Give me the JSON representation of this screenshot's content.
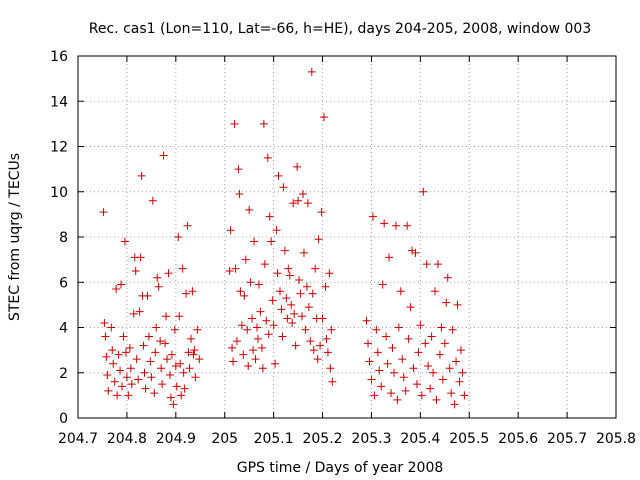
{
  "chart_data": {
    "type": "scatter",
    "title": "Rec. cas1 (Lon=110, Lat=-66, h=HE), days 204-205, 2008, window 003",
    "xlabel": "GPS time / Days of year 2008",
    "ylabel": "STEC from uqrg / TECUs",
    "xlim": [
      204.7,
      205.8
    ],
    "ylim": [
      0,
      16
    ],
    "xticks": [
      204.7,
      204.8,
      204.9,
      205,
      205.1,
      205.2,
      205.3,
      205.4,
      205.5,
      205.6,
      205.7,
      205.8
    ],
    "xtick_labels": [
      "204.7",
      "204.8",
      "204.9",
      "205",
      "205.1",
      "205.2",
      "205.3",
      "205.4",
      "205.5",
      "205.6",
      "205.7",
      "205.8"
    ],
    "yticks": [
      0,
      2,
      4,
      6,
      8,
      10,
      12,
      14,
      16
    ],
    "ytick_labels": [
      "0",
      "2",
      "4",
      "6",
      "8",
      "10",
      "12",
      "14",
      "16"
    ],
    "grid": true,
    "marker": "+",
    "color": "#cc0000",
    "series": [
      {
        "name": "STEC",
        "points": [
          [
            204.752,
            9.1
          ],
          [
            204.754,
            4.2
          ],
          [
            204.756,
            3.6
          ],
          [
            204.758,
            2.7
          ],
          [
            204.76,
            1.9
          ],
          [
            204.762,
            1.2
          ],
          [
            204.768,
            4.0
          ],
          [
            204.77,
            3.0
          ],
          [
            204.772,
            2.4
          ],
          [
            204.775,
            1.6
          ],
          [
            204.778,
            5.7
          ],
          [
            204.78,
            1.0
          ],
          [
            204.783,
            2.8
          ],
          [
            204.786,
            2.1
          ],
          [
            204.788,
            5.9
          ],
          [
            204.79,
            1.4
          ],
          [
            204.793,
            3.6
          ],
          [
            204.796,
            7.8
          ],
          [
            204.798,
            2.9
          ],
          [
            204.8,
            1.8
          ],
          [
            204.803,
            1.0
          ],
          [
            204.806,
            3.1
          ],
          [
            204.808,
            2.2
          ],
          [
            204.81,
            1.5
          ],
          [
            204.814,
            4.6
          ],
          [
            204.816,
            7.1
          ],
          [
            204.818,
            6.5
          ],
          [
            204.82,
            2.6
          ],
          [
            204.823,
            1.7
          ],
          [
            204.826,
            4.7
          ],
          [
            204.828,
            7.1
          ],
          [
            204.83,
            10.7
          ],
          [
            204.832,
            5.4
          ],
          [
            204.834,
            3.2
          ],
          [
            204.836,
            2.0
          ],
          [
            204.838,
            1.3
          ],
          [
            204.842,
            5.4
          ],
          [
            204.845,
            3.6
          ],
          [
            204.848,
            2.5
          ],
          [
            204.85,
            1.8
          ],
          [
            204.853,
            9.6
          ],
          [
            204.856,
            1.1
          ],
          [
            204.858,
            2.9
          ],
          [
            204.86,
            4.0
          ],
          [
            204.862,
            6.2
          ],
          [
            204.865,
            5.8
          ],
          [
            204.868,
            3.4
          ],
          [
            204.87,
            2.2
          ],
          [
            204.872,
            1.5
          ],
          [
            204.875,
            11.6
          ],
          [
            204.878,
            3.3
          ],
          [
            204.88,
            4.5
          ],
          [
            204.882,
            2.6
          ],
          [
            204.885,
            6.4
          ],
          [
            204.888,
            1.9
          ],
          [
            204.89,
            0.9
          ],
          [
            204.892,
            2.8
          ],
          [
            204.895,
            0.6
          ],
          [
            204.898,
            3.9
          ],
          [
            204.9,
            2.3
          ],
          [
            204.902,
            1.4
          ],
          [
            204.905,
            8.0
          ],
          [
            204.907,
            4.5
          ],
          [
            204.909,
            2.4
          ],
          [
            204.911,
            1.0
          ],
          [
            204.914,
            6.6
          ],
          [
            204.916,
            2.0
          ],
          [
            204.918,
            1.3
          ],
          [
            204.921,
            5.5
          ],
          [
            204.924,
            8.5
          ],
          [
            204.926,
            2.9
          ],
          [
            204.928,
            2.2
          ],
          [
            204.931,
            3.5
          ],
          [
            204.934,
            5.6
          ],
          [
            204.936,
            2.8
          ],
          [
            204.938,
            3.0
          ],
          [
            204.94,
            1.8
          ],
          [
            204.944,
            3.9
          ],
          [
            204.948,
            2.6
          ],
          [
            205.01,
            6.5
          ],
          [
            205.012,
            8.3
          ],
          [
            205.015,
            3.1
          ],
          [
            205.017,
            2.5
          ],
          [
            205.02,
            13.0
          ],
          [
            205.022,
            6.6
          ],
          [
            205.025,
            3.4
          ],
          [
            205.028,
            11.0
          ],
          [
            205.03,
            9.9
          ],
          [
            205.032,
            5.6
          ],
          [
            205.035,
            4.1
          ],
          [
            205.038,
            2.8
          ],
          [
            205.04,
            5.4
          ],
          [
            205.043,
            7.0
          ],
          [
            205.046,
            3.9
          ],
          [
            205.048,
            2.3
          ],
          [
            205.05,
            9.2
          ],
          [
            205.053,
            6.0
          ],
          [
            205.056,
            4.4
          ],
          [
            205.058,
            3.0
          ],
          [
            205.06,
            7.8
          ],
          [
            205.063,
            2.6
          ],
          [
            205.066,
            4.0
          ],
          [
            205.068,
            3.5
          ],
          [
            205.07,
            5.9
          ],
          [
            205.073,
            4.7
          ],
          [
            205.076,
            3.1
          ],
          [
            205.078,
            2.2
          ],
          [
            205.08,
            13.0
          ],
          [
            205.082,
            6.8
          ],
          [
            205.085,
            4.3
          ],
          [
            205.088,
            11.5
          ],
          [
            205.09,
            3.7
          ],
          [
            205.092,
            8.9
          ],
          [
            205.095,
            7.8
          ],
          [
            205.098,
            5.2
          ],
          [
            205.1,
            4.1
          ],
          [
            205.103,
            2.4
          ],
          [
            205.106,
            8.3
          ],
          [
            205.108,
            6.4
          ],
          [
            205.11,
            10.7
          ],
          [
            205.113,
            5.6
          ],
          [
            205.116,
            4.8
          ],
          [
            205.118,
            3.6
          ],
          [
            205.12,
            10.2
          ],
          [
            205.123,
            7.4
          ],
          [
            205.126,
            5.3
          ],
          [
            205.128,
            4.4
          ],
          [
            205.13,
            6.6
          ],
          [
            205.133,
            6.3
          ],
          [
            205.136,
            5.0
          ],
          [
            205.138,
            4.2
          ],
          [
            205.14,
            9.5
          ],
          [
            205.142,
            4.6
          ],
          [
            205.145,
            3.2
          ],
          [
            205.148,
            11.1
          ],
          [
            205.15,
            9.6
          ],
          [
            205.152,
            6.1
          ],
          [
            205.155,
            5.5
          ],
          [
            205.158,
            4.5
          ],
          [
            205.16,
            9.9
          ],
          [
            205.162,
            7.3
          ],
          [
            205.165,
            3.9
          ],
          [
            205.168,
            5.8
          ],
          [
            205.17,
            9.5
          ],
          [
            205.172,
            4.9
          ],
          [
            205.175,
            3.4
          ],
          [
            205.178,
            15.3
          ],
          [
            205.18,
            5.5
          ],
          [
            205.182,
            3.0
          ],
          [
            205.185,
            6.6
          ],
          [
            205.188,
            4.4
          ],
          [
            205.19,
            2.6
          ],
          [
            205.192,
            7.9
          ],
          [
            205.195,
            3.2
          ],
          [
            205.198,
            9.1
          ],
          [
            205.2,
            4.4
          ],
          [
            205.203,
            13.3
          ],
          [
            205.206,
            5.8
          ],
          [
            205.208,
            3.5
          ],
          [
            205.211,
            2.9
          ],
          [
            205.214,
            6.4
          ],
          [
            205.216,
            2.2
          ],
          [
            205.218,
            3.9
          ],
          [
            205.22,
            1.6
          ],
          [
            205.29,
            4.3
          ],
          [
            205.293,
            3.3
          ],
          [
            205.296,
            2.5
          ],
          [
            205.3,
            1.7
          ],
          [
            205.303,
            8.9
          ],
          [
            205.306,
            1.0
          ],
          [
            205.31,
            3.9
          ],
          [
            205.313,
            2.9
          ],
          [
            205.316,
            2.1
          ],
          [
            205.32,
            1.4
          ],
          [
            205.323,
            5.9
          ],
          [
            205.326,
            8.6
          ],
          [
            205.33,
            3.6
          ],
          [
            205.333,
            2.4
          ],
          [
            205.336,
            7.1
          ],
          [
            205.34,
            1.1
          ],
          [
            205.343,
            3.1
          ],
          [
            205.346,
            2.0
          ],
          [
            205.35,
            8.5
          ],
          [
            205.353,
            0.8
          ],
          [
            205.356,
            4.0
          ],
          [
            205.36,
            5.6
          ],
          [
            205.363,
            2.6
          ],
          [
            205.366,
            1.8
          ],
          [
            205.37,
            1.2
          ],
          [
            205.373,
            8.5
          ],
          [
            205.376,
            3.5
          ],
          [
            205.38,
            4.9
          ],
          [
            205.383,
            7.4
          ],
          [
            205.386,
            2.2
          ],
          [
            205.39,
            7.3
          ],
          [
            205.393,
            1.5
          ],
          [
            205.396,
            2.9
          ],
          [
            205.4,
            4.1
          ],
          [
            205.403,
            1.0
          ],
          [
            205.406,
            10.0
          ],
          [
            205.41,
            3.3
          ],
          [
            205.413,
            6.8
          ],
          [
            205.416,
            2.3
          ],
          [
            205.42,
            1.3
          ],
          [
            205.423,
            3.6
          ],
          [
            205.426,
            2.0
          ],
          [
            205.43,
            5.6
          ],
          [
            205.433,
            0.8
          ],
          [
            205.436,
            6.8
          ],
          [
            205.44,
            2.8
          ],
          [
            205.443,
            4.0
          ],
          [
            205.446,
            1.7
          ],
          [
            205.45,
            3.3
          ],
          [
            205.453,
            5.1
          ],
          [
            205.456,
            6.2
          ],
          [
            205.46,
            2.2
          ],
          [
            205.463,
            1.1
          ],
          [
            205.466,
            3.9
          ],
          [
            205.47,
            0.6
          ],
          [
            205.473,
            2.5
          ],
          [
            205.476,
            5.0
          ],
          [
            205.48,
            1.6
          ],
          [
            205.483,
            3.0
          ],
          [
            205.486,
            2.0
          ],
          [
            205.49,
            1.0
          ]
        ]
      }
    ]
  }
}
